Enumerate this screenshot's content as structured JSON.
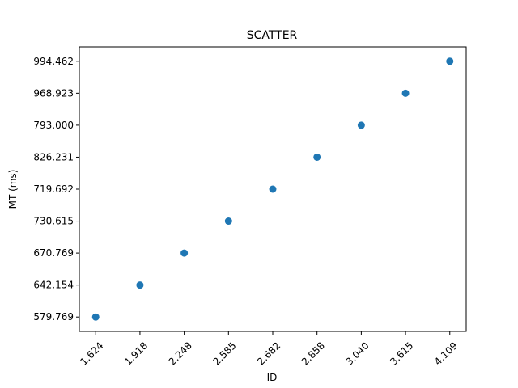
{
  "chart_data": {
    "type": "scatter",
    "title": "SCATTER",
    "xlabel": "ID",
    "ylabel": "MT (ms)",
    "x_categories": [
      "1.624",
      "1.918",
      "2.248",
      "2.585",
      "2.682",
      "2.858",
      "3.040",
      "3.615",
      "4.109"
    ],
    "y_categories": [
      "579.769",
      "642.154",
      "670.769",
      "730.615",
      "719.692",
      "826.231",
      "793.000",
      "968.923",
      "994.462"
    ],
    "color": "#1f77b4"
  }
}
